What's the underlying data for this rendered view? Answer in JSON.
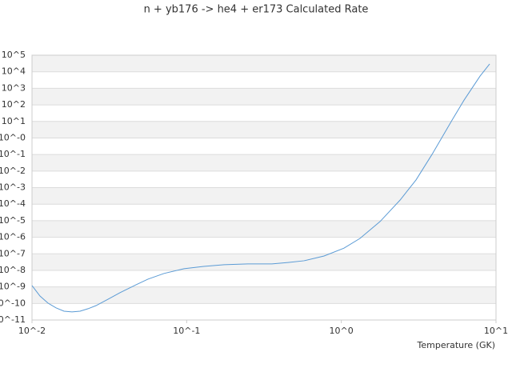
{
  "chart_data": {
    "type": "line",
    "title": "n + yb176 -> he4 + er173 Calculated Rate",
    "x_label": "Temperature (GK)",
    "x": [
      0.01,
      0.01126,
      0.01269,
      0.0143,
      0.01611,
      0.01814,
      0.02044,
      0.02303,
      0.02594,
      0.031,
      0.0371,
      0.0471,
      0.0562,
      0.0714,
      0.0962,
      0.129,
      0.175,
      0.249,
      0.356,
      0.452,
      0.574,
      0.773,
      1.04,
      1.32,
      1.78,
      2.4,
      3.04,
      3.86,
      5.2,
      6.22,
      7.89,
      9.1
    ],
    "series": [
      {
        "color": "#5b9bd5",
        "values": [
          1.2e-09,
          2.8e-10,
          1.05e-10,
          5.4e-11,
          3.4e-11,
          3.1e-11,
          3.4e-11,
          4.8e-11,
          7.4e-11,
          1.8e-10,
          4.5e-10,
          1.35e-09,
          2.95e-09,
          6.5e-09,
          1.26e-08,
          1.74e-08,
          2.2e-08,
          2.45e-08,
          2.45e-08,
          3e-08,
          3.8e-08,
          7.4e-08,
          2.2e-07,
          8.5e-07,
          8.9e-06,
          0.000178,
          0.0029,
          0.102,
          12,
          195,
          5500,
          29500
        ]
      }
    ],
    "xscale": "log",
    "yscale": "log",
    "xlim": [
      0.01,
      10
    ],
    "ylim": [
      1e-11,
      100000
    ],
    "xticks": [
      {
        "value": 0.01,
        "label": "10^-2"
      },
      {
        "value": 0.1,
        "label": "10^-1"
      },
      {
        "value": 1,
        "label": "10^0"
      },
      {
        "value": 10,
        "label": "10^1"
      }
    ],
    "yticks": [
      {
        "value": 100000,
        "label": "10^5"
      },
      {
        "value": 10000,
        "label": "10^4"
      },
      {
        "value": 1000,
        "label": "10^3"
      },
      {
        "value": 100,
        "label": "10^2"
      },
      {
        "value": 10,
        "label": "10^1"
      },
      {
        "value": 1,
        "label": "10^-0"
      },
      {
        "value": 0.1,
        "label": "10^-1"
      },
      {
        "value": 0.01,
        "label": "10^-2"
      },
      {
        "value": 0.001,
        "label": "10^-3"
      },
      {
        "value": 0.0001,
        "label": "10^-4"
      },
      {
        "value": 1e-05,
        "label": "10^-5"
      },
      {
        "value": 1e-06,
        "label": "10^-6"
      },
      {
        "value": 1e-07,
        "label": "10^-7"
      },
      {
        "value": 1e-08,
        "label": "10^-8"
      },
      {
        "value": 1e-09,
        "label": "10^-9"
      },
      {
        "value": 1e-10,
        "label": "10^-10"
      },
      {
        "value": 1e-11,
        "label": "10^-11"
      }
    ],
    "grid": true
  }
}
